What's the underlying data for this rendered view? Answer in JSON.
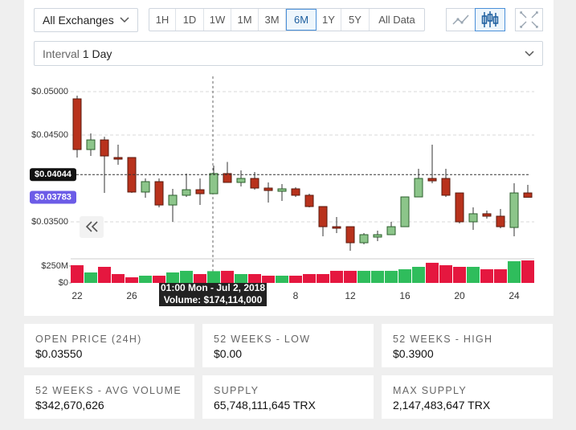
{
  "toolbar": {
    "exchange": "All Exchanges",
    "ranges": [
      "1H",
      "1D",
      "1W",
      "1M",
      "3M",
      "6M",
      "1Y",
      "5Y",
      "All Data"
    ],
    "active_range": "6M",
    "interval_label": "Interval",
    "interval_value": "1 Day"
  },
  "chart_data": {
    "type": "candlestick",
    "categories": [
      "22",
      null,
      null,
      null,
      "26",
      null,
      null,
      null,
      null,
      null,
      null,
      null,
      null,
      null,
      null,
      null,
      "8",
      null,
      null,
      null,
      "12",
      null,
      null,
      null,
      "16",
      null,
      null,
      null,
      "20",
      null,
      null,
      null,
      "24",
      null
    ],
    "open": [
      0.04917,
      0.04333,
      0.04444,
      0.04241,
      0.04241,
      0.03843,
      0.03963,
      0.03694,
      0.03806,
      0.0387,
      0.03824,
      0.04056,
      0.03954,
      0.04,
      0.03889,
      0.03852,
      0.0388,
      0.03806,
      0.03676,
      0.03444,
      0.03444,
      0.03259,
      0.03324,
      0.03352,
      0.03444,
      0.03787,
      0.04,
      0.04,
      0.03833,
      0.035,
      0.03593,
      0.03565,
      0.03435,
      0.03833
    ],
    "high": [
      0.04954,
      0.04519,
      0.04481,
      0.04389,
      0.04241,
      0.04,
      0.04,
      0.0388,
      0.04056,
      0.04,
      0.04148,
      0.0419,
      0.04093,
      0.04074,
      0.03954,
      0.03935,
      0.03898,
      0.03824,
      0.03676,
      0.03556,
      0.03444,
      0.0337,
      0.03398,
      0.035,
      0.03787,
      0.04111,
      0.04389,
      0.04111,
      0.03833,
      0.03667,
      0.0363,
      0.03648,
      0.03944,
      0.03926
    ],
    "low": [
      0.04241,
      0.04259,
      0.03833,
      0.04157,
      0.03833,
      0.03778,
      0.03667,
      0.035,
      0.03787,
      0.03694,
      0.03824,
      0.03954,
      0.03907,
      0.0387,
      0.03722,
      0.03741,
      0.03787,
      0.03667,
      0.03333,
      0.0337,
      0.03167,
      0.03241,
      0.03278,
      0.03352,
      0.03444,
      0.03787,
      0.03944,
      0.03787,
      0.03481,
      0.03407,
      0.03537,
      0.03426,
      0.03333,
      0.03783
    ],
    "close": [
      0.04333,
      0.04444,
      0.04259,
      0.04222,
      0.03843,
      0.03963,
      0.03694,
      0.03806,
      0.0387,
      0.03824,
      0.04056,
      0.03954,
      0.04,
      0.03889,
      0.03861,
      0.0388,
      0.03806,
      0.03676,
      0.03444,
      0.03426,
      0.03259,
      0.03352,
      0.03352,
      0.03444,
      0.03787,
      0.04,
      0.03972,
      0.03806,
      0.035,
      0.03593,
      0.03565,
      0.03444,
      0.03833,
      0.03783
    ],
    "volume": [
      262000000,
      155000000,
      238000000,
      131000000,
      83000000,
      107000000,
      107000000,
      155000000,
      179000000,
      131000000,
      174114000,
      179000000,
      131000000,
      131000000,
      107000000,
      107000000,
      107000000,
      131000000,
      131000000,
      179000000,
      179000000,
      179000000,
      179000000,
      179000000,
      202000000,
      238000000,
      298000000,
      262000000,
      238000000,
      238000000,
      202000000,
      202000000,
      321000000,
      333000000
    ],
    "ylim": [
      0.03111,
      0.05167
    ],
    "yticks": [
      {
        "value": 0.05,
        "label": "$0.05000"
      },
      {
        "value": 0.045,
        "label": "$0.04500"
      },
      {
        "value": 0.035,
        "label": "$0.03500"
      }
    ],
    "volume_ylim": [
      0,
      357000000
    ],
    "volume_yticks": [
      {
        "value": 250000000,
        "label": "$250M"
      },
      {
        "value": 0,
        "label": "$0"
      }
    ],
    "grid": true,
    "up_color": "#8cc58a",
    "down_color": "#b8321c",
    "volume_up_color": "#2fbd5c",
    "volume_down_color": "#e5173f",
    "price_markers": [
      {
        "value": 0.04044,
        "label": "$0.04044",
        "color": "#111111"
      },
      {
        "value": 0.03783,
        "label": "$0.03783",
        "color": "#6c5ce7"
      }
    ],
    "tooltip": {
      "date": "01:00 Mon - Jul 2, 2018",
      "volume": "Volume: $174,114,000"
    }
  },
  "stats": [
    {
      "label": "OPEN PRICE (24H)",
      "value": "$0.03550"
    },
    {
      "label": "52 WEEKS - LOW",
      "value": "$0.00"
    },
    {
      "label": "52 WEEKS - HIGH",
      "value": "$0.3900"
    },
    {
      "label": "52 WEEKS - AVG VOLUME",
      "value": "$342,670,626"
    },
    {
      "label": "SUPPLY",
      "value": "65,748,111,645 TRX"
    },
    {
      "label": "MAX SUPPLY",
      "value": "2,147,483,647 TRX"
    }
  ]
}
